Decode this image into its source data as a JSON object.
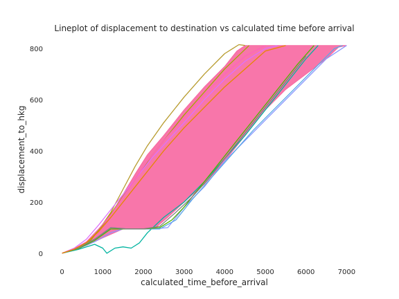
{
  "chart_data": {
    "type": "line",
    "title": "Lineplot of displacement to destination vs calculated time before arrival",
    "xlabel": "calculated_time_before_arrival",
    "ylabel": "displacement_to_hkg",
    "xlim": [
      -300,
      7300
    ],
    "ylim": [
      -30,
      830
    ],
    "xticks": [
      0,
      1000,
      2000,
      3000,
      4000,
      5000,
      6000,
      7000
    ],
    "yticks": [
      0,
      200,
      400,
      600,
      800
    ],
    "grid": false,
    "legend": "none",
    "band": {
      "color": "#F767A1",
      "left_edge": [
        [
          0,
          0
        ],
        [
          300,
          15
        ],
        [
          600,
          40
        ],
        [
          900,
          85
        ],
        [
          1200,
          150
        ],
        [
          1500,
          230
        ],
        [
          1800,
          310
        ],
        [
          2100,
          385
        ],
        [
          2500,
          460
        ],
        [
          3000,
          560
        ],
        [
          3500,
          650
        ],
        [
          4000,
          730
        ],
        [
          4300,
          790
        ],
        [
          4500,
          812
        ]
      ],
      "right_edge": [
        [
          7000,
          812
        ],
        [
          6800,
          805
        ],
        [
          6500,
          760
        ],
        [
          6000,
          700
        ],
        [
          5500,
          640
        ],
        [
          5000,
          560
        ],
        [
          4500,
          460
        ],
        [
          4000,
          360
        ],
        [
          3500,
          270
        ],
        [
          3000,
          200
        ],
        [
          2600,
          140
        ],
        [
          2300,
          100
        ],
        [
          1800,
          95
        ],
        [
          1500,
          95
        ],
        [
          1000,
          60
        ],
        [
          600,
          30
        ],
        [
          300,
          15
        ],
        [
          0,
          0
        ]
      ]
    },
    "series": [
      {
        "color": "#B79B2D",
        "x": [
          0,
          300,
          600,
          900,
          1200,
          1500,
          1800,
          2100,
          2500,
          3000,
          3500,
          4000,
          4200,
          4350,
          4500
        ],
        "y": [
          0,
          15,
          40,
          90,
          160,
          250,
          340,
          420,
          510,
          610,
          700,
          780,
          800,
          815,
          812
        ]
      },
      {
        "color": "#A3A500",
        "x": [
          0,
          300,
          700,
          1000,
          1400,
          1800,
          2200,
          2600,
          3000,
          3500,
          4000,
          4600
        ],
        "y": [
          0,
          18,
          50,
          110,
          200,
          290,
          380,
          460,
          540,
          630,
          720,
          812
        ]
      },
      {
        "color": "#00B3A0",
        "x": [
          0,
          400,
          800,
          1000,
          1100,
          1300,
          1500,
          1700,
          1900,
          2100,
          2500,
          3000,
          3500,
          4000,
          4500,
          5000,
          5500,
          6000,
          6300
        ],
        "y": [
          0,
          15,
          35,
          20,
          0,
          20,
          25,
          20,
          40,
          80,
          140,
          200,
          280,
          370,
          460,
          560,
          660,
          760,
          812
        ]
      },
      {
        "color": "#8C98FF",
        "x": [
          0,
          400,
          800,
          1200,
          1500,
          1800,
          2200,
          2600,
          3000,
          3500,
          4000,
          4500,
          5000,
          5500,
          6000,
          6500,
          7000
        ],
        "y": [
          0,
          18,
          45,
          80,
          95,
          95,
          95,
          100,
          180,
          260,
          360,
          440,
          520,
          600,
          680,
          760,
          812
        ]
      },
      {
        "color": "#5BA8E6",
        "x": [
          0,
          400,
          800,
          1200,
          1600,
          2000,
          2400,
          2800,
          3200,
          3700,
          4200,
          4700,
          5200,
          5700,
          6200,
          6700,
          6900
        ],
        "y": [
          0,
          18,
          50,
          100,
          95,
          95,
          95,
          130,
          210,
          300,
          390,
          480,
          560,
          640,
          720,
          800,
          812
        ]
      },
      {
        "color": "#53B400",
        "x": [
          0,
          400,
          800,
          1200,
          1600,
          2000,
          2400,
          2700,
          3000,
          3400,
          3800,
          4300,
          4800,
          5300,
          5800,
          6200
        ],
        "y": [
          0,
          18,
          50,
          95,
          95,
          95,
          100,
          130,
          180,
          260,
          340,
          440,
          540,
          640,
          740,
          812
        ]
      },
      {
        "color": "#7F7F7F",
        "x": [
          0,
          400,
          800,
          1200,
          1600,
          2000,
          2400,
          2800,
          3200,
          3600,
          4000,
          4500,
          5000,
          5500,
          6000
        ],
        "y": [
          0,
          20,
          55,
          100,
          95,
          95,
          105,
          160,
          220,
          290,
          370,
          470,
          570,
          670,
          770
        ]
      },
      {
        "color": "#DD71FA",
        "x": [
          0,
          300,
          600,
          900,
          1200,
          1500,
          1800,
          2200,
          2600,
          3000,
          3500,
          4000,
          4500,
          5000,
          5300
        ],
        "y": [
          0,
          20,
          55,
          110,
          170,
          230,
          290,
          370,
          440,
          510,
          600,
          680,
          750,
          800,
          812
        ]
      },
      {
        "color": "#FF62BC",
        "x": [
          0,
          300,
          600,
          900,
          1200,
          1500,
          1800,
          2100,
          2500,
          3000,
          3500,
          4000,
          4500,
          5000
        ],
        "y": [
          0,
          18,
          45,
          95,
          150,
          220,
          290,
          360,
          440,
          530,
          620,
          700,
          770,
          812
        ]
      },
      {
        "color": "#E58700",
        "x": [
          0,
          300,
          600,
          900,
          1200,
          1500,
          1800,
          2100,
          2500,
          3000,
          3500,
          4000,
          4500,
          5000,
          5500
        ],
        "y": [
          0,
          16,
          42,
          85,
          140,
          200,
          260,
          320,
          400,
          490,
          570,
          650,
          720,
          790,
          812
        ]
      }
    ]
  }
}
